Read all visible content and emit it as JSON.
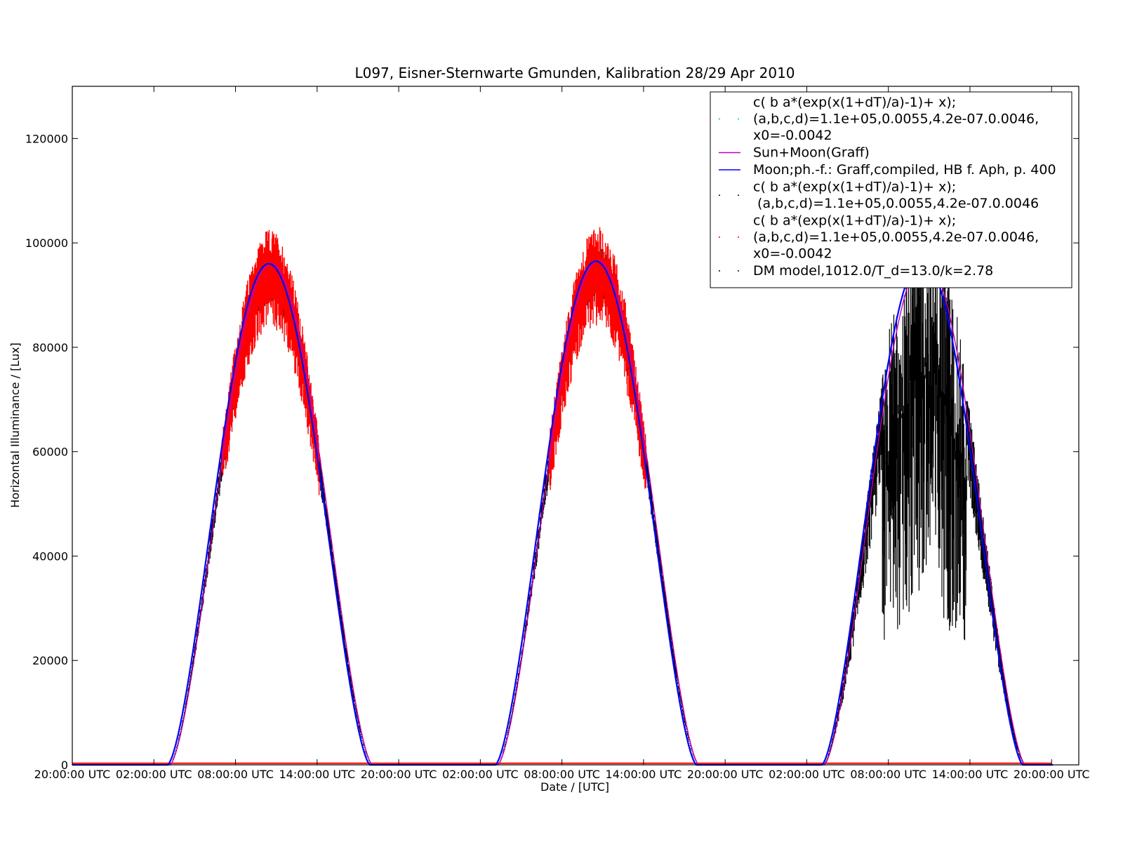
{
  "chart_data": {
    "type": "line",
    "title": "L097, Eisner-Sternwarte Gmunden, Kalibration 28/29 Apr 2010",
    "xlabel": "Date / [UTC]",
    "ylabel": "Horizontal Illuminance / [Lux]",
    "x_unit": "hours since 20:00:00 UTC",
    "xlim": [
      0,
      74
    ],
    "ylim": [
      0,
      130000
    ],
    "x_ticks": [
      {
        "value": 0,
        "label": "20:00:00 UTC"
      },
      {
        "value": 6,
        "label": "02:00:00 UTC"
      },
      {
        "value": 12,
        "label": "08:00:00 UTC"
      },
      {
        "value": 18,
        "label": "14:00:00 UTC"
      },
      {
        "value": 24,
        "label": "20:00:00 UTC"
      },
      {
        "value": 30,
        "label": "02:00:00 UTC"
      },
      {
        "value": 36,
        "label": "08:00:00 UTC"
      },
      {
        "value": 42,
        "label": "14:00:00 UTC"
      },
      {
        "value": 48,
        "label": "20:00:00 UTC"
      },
      {
        "value": 54,
        "label": "02:00:00 UTC"
      },
      {
        "value": 60,
        "label": "08:00:00 UTC"
      },
      {
        "value": 66,
        "label": "14:00:00 UTC"
      },
      {
        "value": 72,
        "label": "20:00:00 UTC"
      }
    ],
    "y_ticks": [
      {
        "value": 0,
        "label": "0"
      },
      {
        "value": 20000,
        "label": "20000"
      },
      {
        "value": 40000,
        "label": "40000"
      },
      {
        "value": 60000,
        "label": "60000"
      },
      {
        "value": 80000,
        "label": "80000"
      },
      {
        "value": 100000,
        "label": "100000"
      },
      {
        "value": 120000,
        "label": "120000"
      }
    ],
    "grid": false,
    "legend_position": "top-right",
    "days": [
      {
        "sunrise": 7.0,
        "sunset": 21.9,
        "peak": 96000,
        "measured_peak": 104000
      },
      {
        "sunrise": 31.1,
        "sunset": 45.9,
        "peak": 96500,
        "measured_peak": 103000
      },
      {
        "sunrise": 55.1,
        "sunset": 69.9,
        "peak": 97000,
        "measured_peak": 95000
      }
    ],
    "series": [
      {
        "name": "c( b a*(exp(x(1+dT)/a)-1)+ x);\n(a,b,c,d)=1.1e+05,0.0055,4.2e-07.0.0046,\nx0=-0.0042",
        "style": "dots",
        "color": "#00bfbf"
      },
      {
        "name": "Sun+Moon(Graff)",
        "style": "line",
        "color": "#bf00bf"
      },
      {
        "name": "Moon;ph.-f.: Graff,compiled, HB f. Aph, p. 400",
        "style": "line",
        "color": "#0000ff"
      },
      {
        "name": "c( b a*(exp(x(1+dT)/a)-1)+ x);\n (a,b,c,d)=1.1e+05,0.0055,4.2e-07.0.0046",
        "style": "dots",
        "color": "#000000"
      },
      {
        "name": "c( b a*(exp(x(1+dT)/a)-1)+ x);\n(a,b,c,d)=1.1e+05,0.0055,4.2e-07.0.0046,\nx0=-0.0042",
        "style": "dots",
        "color": "#ff0000"
      },
      {
        "name": "DM model,1012.0/T_d=13.0/k=2.78",
        "style": "dots",
        "color": "#000000"
      }
    ]
  }
}
